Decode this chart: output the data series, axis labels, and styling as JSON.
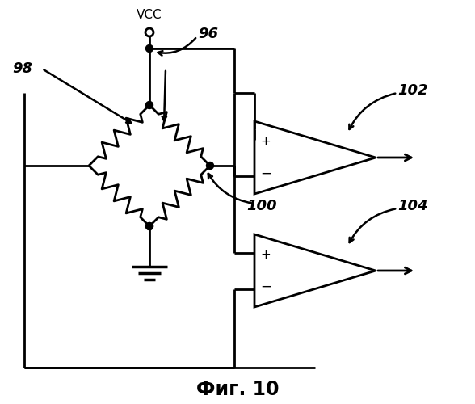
{
  "title": "Фиг. 10",
  "labels": {
    "vcc": "VCC",
    "n96": "96",
    "n98": "98",
    "n100": "100",
    "n102": "102",
    "n104": "104"
  },
  "bg_color": "#ffffff",
  "line_color": "#000000",
  "lw": 2.0
}
